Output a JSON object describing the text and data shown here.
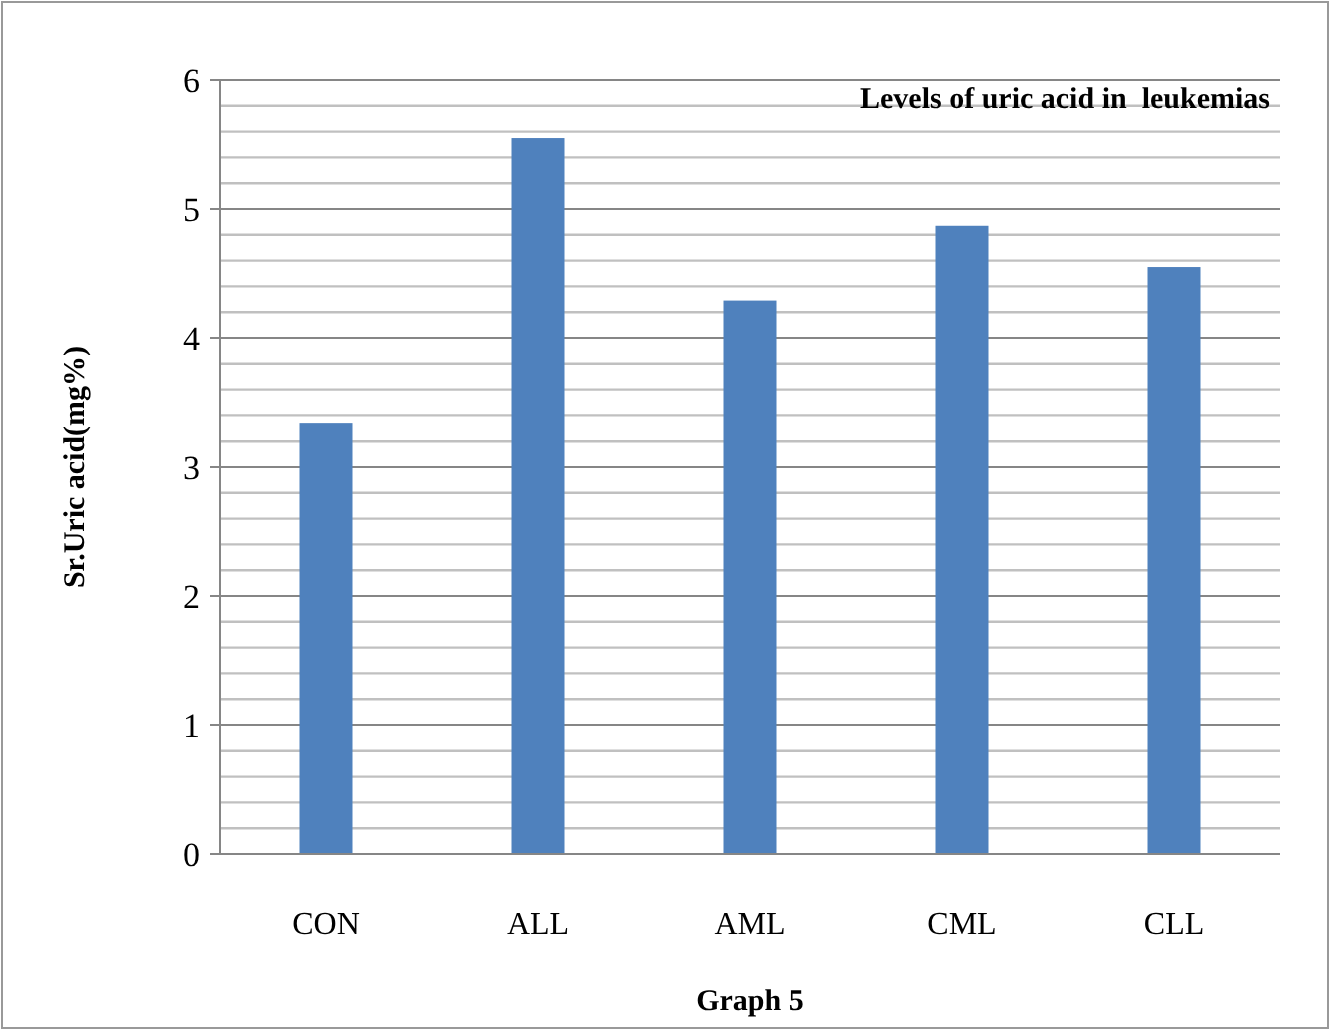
{
  "chart_data": {
    "type": "bar",
    "title": "Levels of uric acid in  leukemias",
    "xlabel": "Graph 5",
    "ylabel": "Sr.Uric acid(mg%)",
    "categories": [
      "CON",
      "ALL",
      "AML",
      "CML",
      "CLL"
    ],
    "values": [
      3.34,
      5.55,
      4.29,
      4.87,
      4.55
    ],
    "color": "#4f81bd",
    "ylim": [
      0,
      6
    ],
    "yticks": [
      0,
      {
        "value": 0.2,
        "label": null
      },
      {
        "value": 0.4,
        "label": null
      },
      {
        "value": 0.6,
        "label": null
      },
      {
        "value": 0.8,
        "label": null
      },
      1,
      {
        "value": 1.2,
        "label": null
      },
      {
        "value": 1.4,
        "label": null
      },
      {
        "value": 1.6,
        "label": null
      },
      {
        "value": 1.8,
        "label": null
      },
      2,
      {
        "value": 2.2,
        "label": null
      },
      {
        "value": 2.4,
        "label": null
      },
      {
        "value": 2.6,
        "label": null
      },
      {
        "value": 2.8,
        "label": null
      },
      3,
      {
        "value": 3.2,
        "label": null
      },
      {
        "value": 3.4,
        "label": null
      },
      {
        "value": 3.6,
        "label": null
      },
      {
        "value": 3.8,
        "label": null
      },
      4,
      {
        "value": 4.2,
        "label": null
      },
      {
        "value": 4.4,
        "label": null
      },
      {
        "value": 4.6,
        "label": null
      },
      {
        "value": 4.8,
        "label": null
      },
      5,
      {
        "value": 5.2,
        "label": null
      },
      {
        "value": 5.4,
        "label": null
      },
      {
        "value": 5.6,
        "label": null
      },
      {
        "value": 5.8,
        "label": null
      },
      6
    ],
    "grid": true
  }
}
